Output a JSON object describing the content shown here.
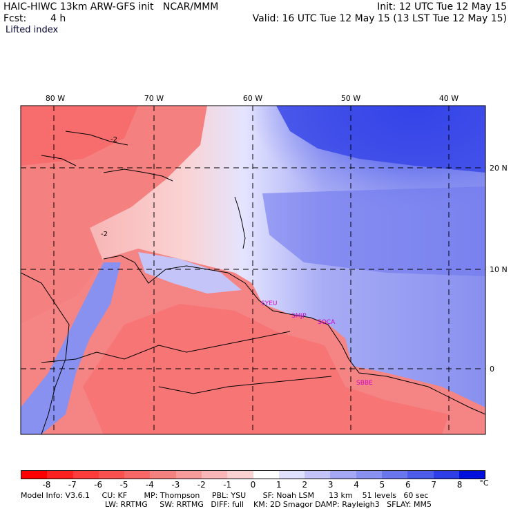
{
  "header": {
    "title": "HAIC-HIWC 13km ARW-GFS init   NCAR/MMM",
    "fcst_label": "Fcst:",
    "fcst_value": "4 h",
    "field": "Lifted index",
    "init": "Init: 12 UTC Tue 12 May 15",
    "valid": "Valid: 16 UTC Tue 12 May 15 (13 LST Tue 12 May 15)"
  },
  "map": {
    "lon_labels": [
      "80 W",
      "70 W",
      "60 W",
      "50 W",
      "40 W"
    ],
    "lat_labels": [
      "20 N",
      "10 N",
      "0"
    ],
    "stations": [
      "SYEU",
      "SMJP",
      "SOCA",
      "SBBE"
    ],
    "contour_labels": [
      "-2",
      "-2"
    ]
  },
  "colorbar": {
    "ticks": [
      "-8",
      "-7",
      "-6",
      "-5",
      "-4",
      "-3",
      "-2",
      "-1",
      "0",
      "1",
      "2",
      "3",
      "4",
      "5",
      "6",
      "7",
      "8"
    ],
    "unit": "°C",
    "colors": [
      "#ff0000",
      "#ff2020",
      "#ff3c3c",
      "#fa5050",
      "#f76767",
      "#f58080",
      "#f79a9a",
      "#f8b6b6",
      "#fad2d2",
      "#ffffff",
      "#e0e0ff",
      "#c4c4f8",
      "#a4a8f4",
      "#8890f0",
      "#6a76ec",
      "#4e5cea",
      "#2f3ee6",
      "#0010dc"
    ]
  },
  "footer": {
    "line1": "Model Info: V3.6.1     CU: KF       MP: Thompson     PBL: YSU       SF: Noah LSM      13 km    51 levels   60 sec",
    "line2": "LW: RRTMG     SW: RRTMG   DIFF: full    KM: 2D Smagor DAMP: Rayleigh3   SFLAY: MM5"
  }
}
